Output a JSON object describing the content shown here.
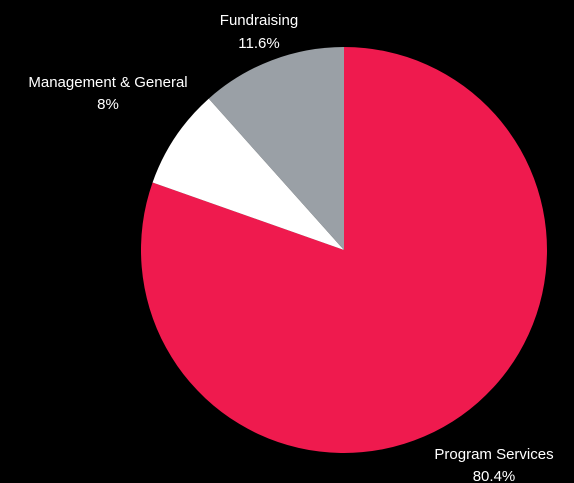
{
  "chart_data": {
    "type": "pie",
    "start": "top, clockwise",
    "slices": [
      {
        "name": "Program Services",
        "value": 80.4,
        "label": "80.4%",
        "color": "#ef1a4e"
      },
      {
        "name": "Management & General",
        "value": 8,
        "label": "8%",
        "color": "#ffffff"
      },
      {
        "name": "Fundraising",
        "value": 11.6,
        "label": "11.6%",
        "color": "#9aa0a6"
      }
    ]
  },
  "colors": {
    "background": "#000000",
    "label_text": "#ffffff"
  }
}
